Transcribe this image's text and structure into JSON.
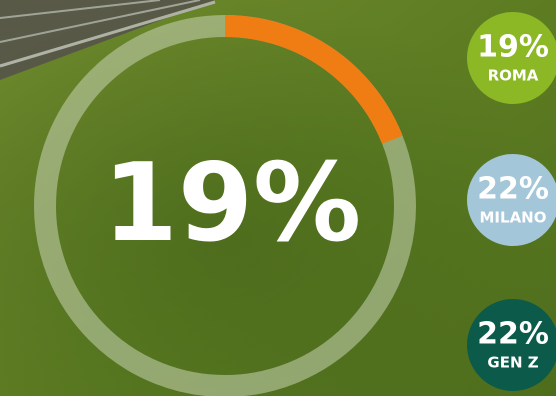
{
  "chart_data": {
    "type": "ring",
    "value": 19,
    "value_label": "19%",
    "ylim": [
      0,
      100
    ],
    "color": "#f07d14",
    "track_color": "#c9d3b4",
    "badges": {
      "categories": [
        "ROMA",
        "MILANO",
        "GEN Z"
      ],
      "values": [
        19,
        22,
        22
      ],
      "value_labels": [
        "19%",
        "22%",
        "22%"
      ],
      "colors": [
        "#8cb826",
        "#a3c6d8",
        "#0b5a4a"
      ]
    }
  }
}
